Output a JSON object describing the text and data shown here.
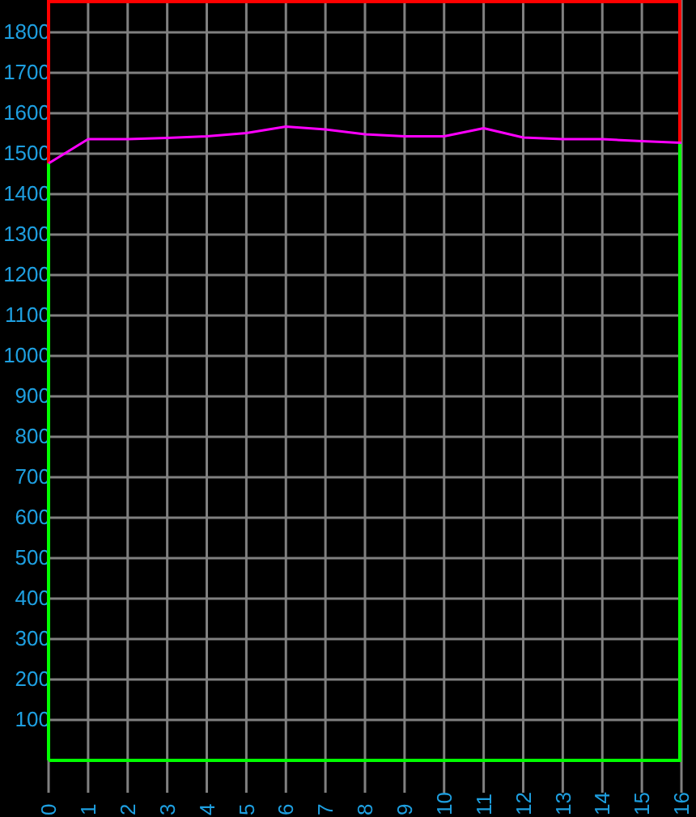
{
  "chart_data": {
    "type": "line",
    "x": [
      0,
      1,
      2,
      3,
      4,
      5,
      6,
      7,
      8,
      9,
      10,
      11,
      12,
      13,
      14,
      15,
      16
    ],
    "series": [
      {
        "color": "#ff00ff",
        "values": [
          1476,
          1536,
          1536,
          1539,
          1543,
          1551,
          1567,
          1560,
          1548,
          1543,
          1543,
          1563,
          1540,
          1536,
          1536,
          1531,
          1527
        ]
      }
    ],
    "xlim": [
      0,
      16
    ],
    "xticks": [
      0,
      1,
      2,
      3,
      4,
      5,
      6,
      7,
      8,
      9,
      10,
      11,
      12,
      13,
      14,
      15,
      16
    ],
    "ylim": [
      0,
      1880
    ],
    "yticks": [
      100,
      200,
      300,
      400,
      500,
      600,
      700,
      800,
      900,
      1000,
      1100,
      1200,
      1300,
      1400,
      1500,
      1600,
      1700,
      1800
    ],
    "grid": true,
    "marker": "none",
    "line_style": "solid"
  }
}
